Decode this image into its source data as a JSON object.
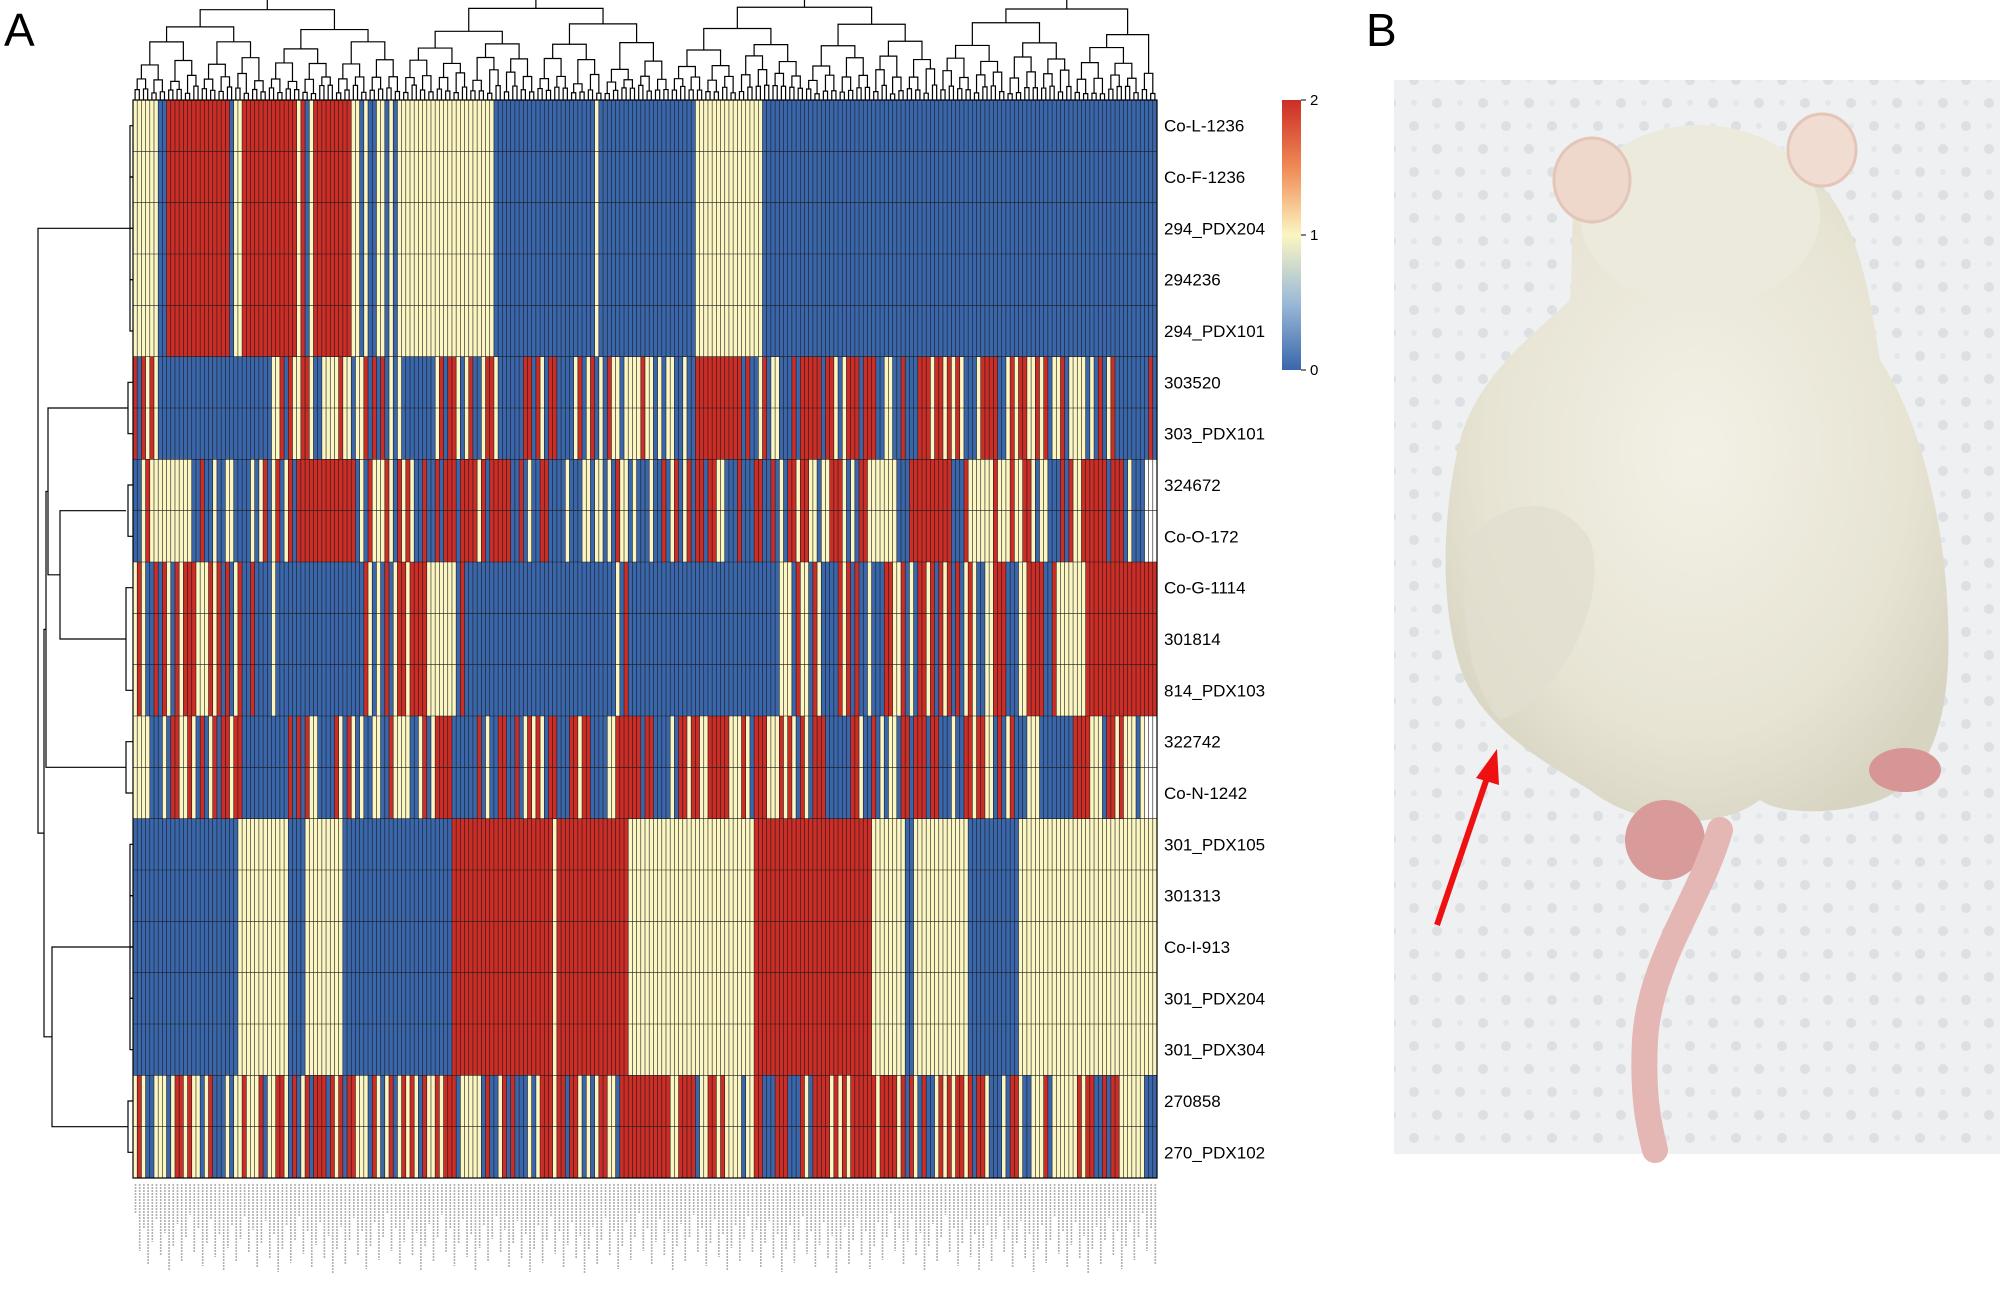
{
  "figure": {
    "panel_a_letter": "A",
    "panel_b_letter": "B"
  },
  "colors": {
    "low": "#3a67ab",
    "mid": "#fbf6c2",
    "high": "#cc2d26",
    "grid": "#1a1a1a",
    "arrow": "#ee1111"
  },
  "chart_data": {
    "type": "heatmap",
    "title": "",
    "rows": [
      "Co-L-1236",
      "Co-F-1236",
      "294_PDX204",
      "294236",
      "294_PDX101",
      "303520",
      "303_PDX101",
      "324672",
      "Co-O-172",
      "Co-G-1114",
      "301814",
      "814_PDX103",
      "322742",
      "Co-N-1242",
      "301_PDX105",
      "301313",
      "Co-I-913",
      "301_PDX204",
      "301_PDX304",
      "270858",
      "270_PDX102"
    ],
    "row_groups": [
      {
        "rows": [
          0,
          1,
          2,
          3,
          4
        ],
        "values": "1111110022222222222222201122222222222221201222222222110100110101111111111111111111111100000000000000000000000010000000000000000000000011111111111111110000000000000000000000000000000000000000000000000000000000000000000000000000000000000000000000"
      },
      {
        "rows": [
          5,
          6
        ],
        "values": "2021210000000000000000000000000001120211221001111211011202020101000000001202210120012210000002202102200001201201021101111211010110010022222222222020012011000202222202210122202220011002000222122121210001222200121221121201120111101020120000000020"
      },
      {
        "rows": [
          7,
          8
        ],
        "values": "0012111111111100200100110000101201201202222222222222201021112102121002002022202222120222220020100220000100011011010211010001002012012022022110002000220020102212211011222101022111111100022222222220002111111211121122101100020211222222022201000"
      },
      {
        "rows": [
          9,
          10,
          11
        ],
        "values": "1210020210212221112120201200200001000000000000000000000210102012212222111111102000000000000000000000000000000000000102000000000000000000000000000000000000111021102100002120200100022112010221202120201210011222000112222002111111122222222222222222"
      },
      {
        "rows": [
          12,
          13
        ],
        "values": "1111000102211210201202212200000000000202021100002102101001100211110012012222000000201002200201212102200022122000011222222022000010221221122222111210222111212102102220000002210020101102202220220001002212211020120001110000000022221110221211101"
      },
      {
        "rows": [
          14,
          15,
          16,
          17,
          18
        ],
        "values": "0000000000000000000000000111111111111000011111111100000000000000000000000000222222222222222222222222122222222222222222111111111111111111111111111111222222222222222222222222222211111111001111111111111000000000000111111111111111111111111111111111"
      },
      {
        "rows": [
          19,
          20
        ],
        "values": "1210011101221211012000101121112011221020120222021202211102101201212102112122201111102001202000101222122022101012211022222222222211222201122121111011220002220002102222121212222221222212021020012121221202210001022100111201111112122002022111111000"
      }
    ],
    "color_scale": {
      "min": 0,
      "mid": 1,
      "max": 2,
      "ticks": [
        "2",
        "1",
        "0"
      ]
    },
    "legend": "right",
    "panel_b": "photograph of a white mouse, dorsal view, red arrow pointing at the flank"
  }
}
